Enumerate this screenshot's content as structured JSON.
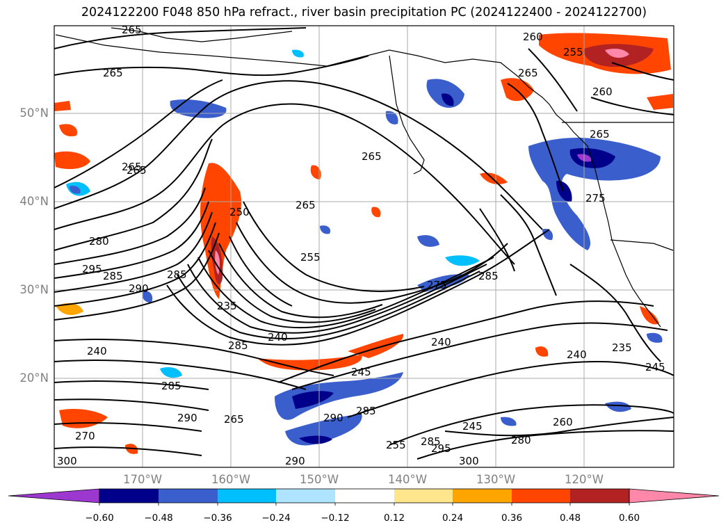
{
  "title": "2024122200 F048 850 hPa refract., river basin precipitation PC (2024122400 - 2024122700)",
  "lat_labels": [
    "50°N",
    "40°N",
    "30°N",
    "20°N"
  ],
  "lon_labels": [
    "170°W",
    "160°W",
    "150°W",
    "140°W",
    "130°W",
    "120°W"
  ],
  "colorbar": {
    "colors": [
      "#9c37d0",
      "#00008b",
      "#3a5fcd",
      "#00bfff",
      "#aee4ff",
      "#ffffff",
      "#ffe68c",
      "#ffa500",
      "#ff4500",
      "#b22222",
      "#ff88aa"
    ],
    "under_color": "#9c37d0",
    "over_color": "#ff88aa",
    "ticks": [
      "−0.60",
      "−0.48",
      "−0.36",
      "−0.24",
      "−0.12",
      "0.12",
      "0.24",
      "0.36",
      "0.48",
      "0.60"
    ]
  },
  "contour_labels": [
    "265",
    "265",
    "265",
    "265",
    "265",
    "260",
    "255",
    "265",
    "260",
    "280",
    "295",
    "285",
    "290",
    "285",
    "235",
    "240",
    "240",
    "285",
    "275",
    "285",
    "240",
    "240",
    "235",
    "245",
    "245",
    "260",
    "280",
    "290",
    "285",
    "290",
    "295",
    "300",
    "285",
    "290",
    "265",
    "300",
    "270",
    "265",
    "255",
    "250",
    "245",
    "285",
    "255",
    "275",
    "265"
  ]
}
